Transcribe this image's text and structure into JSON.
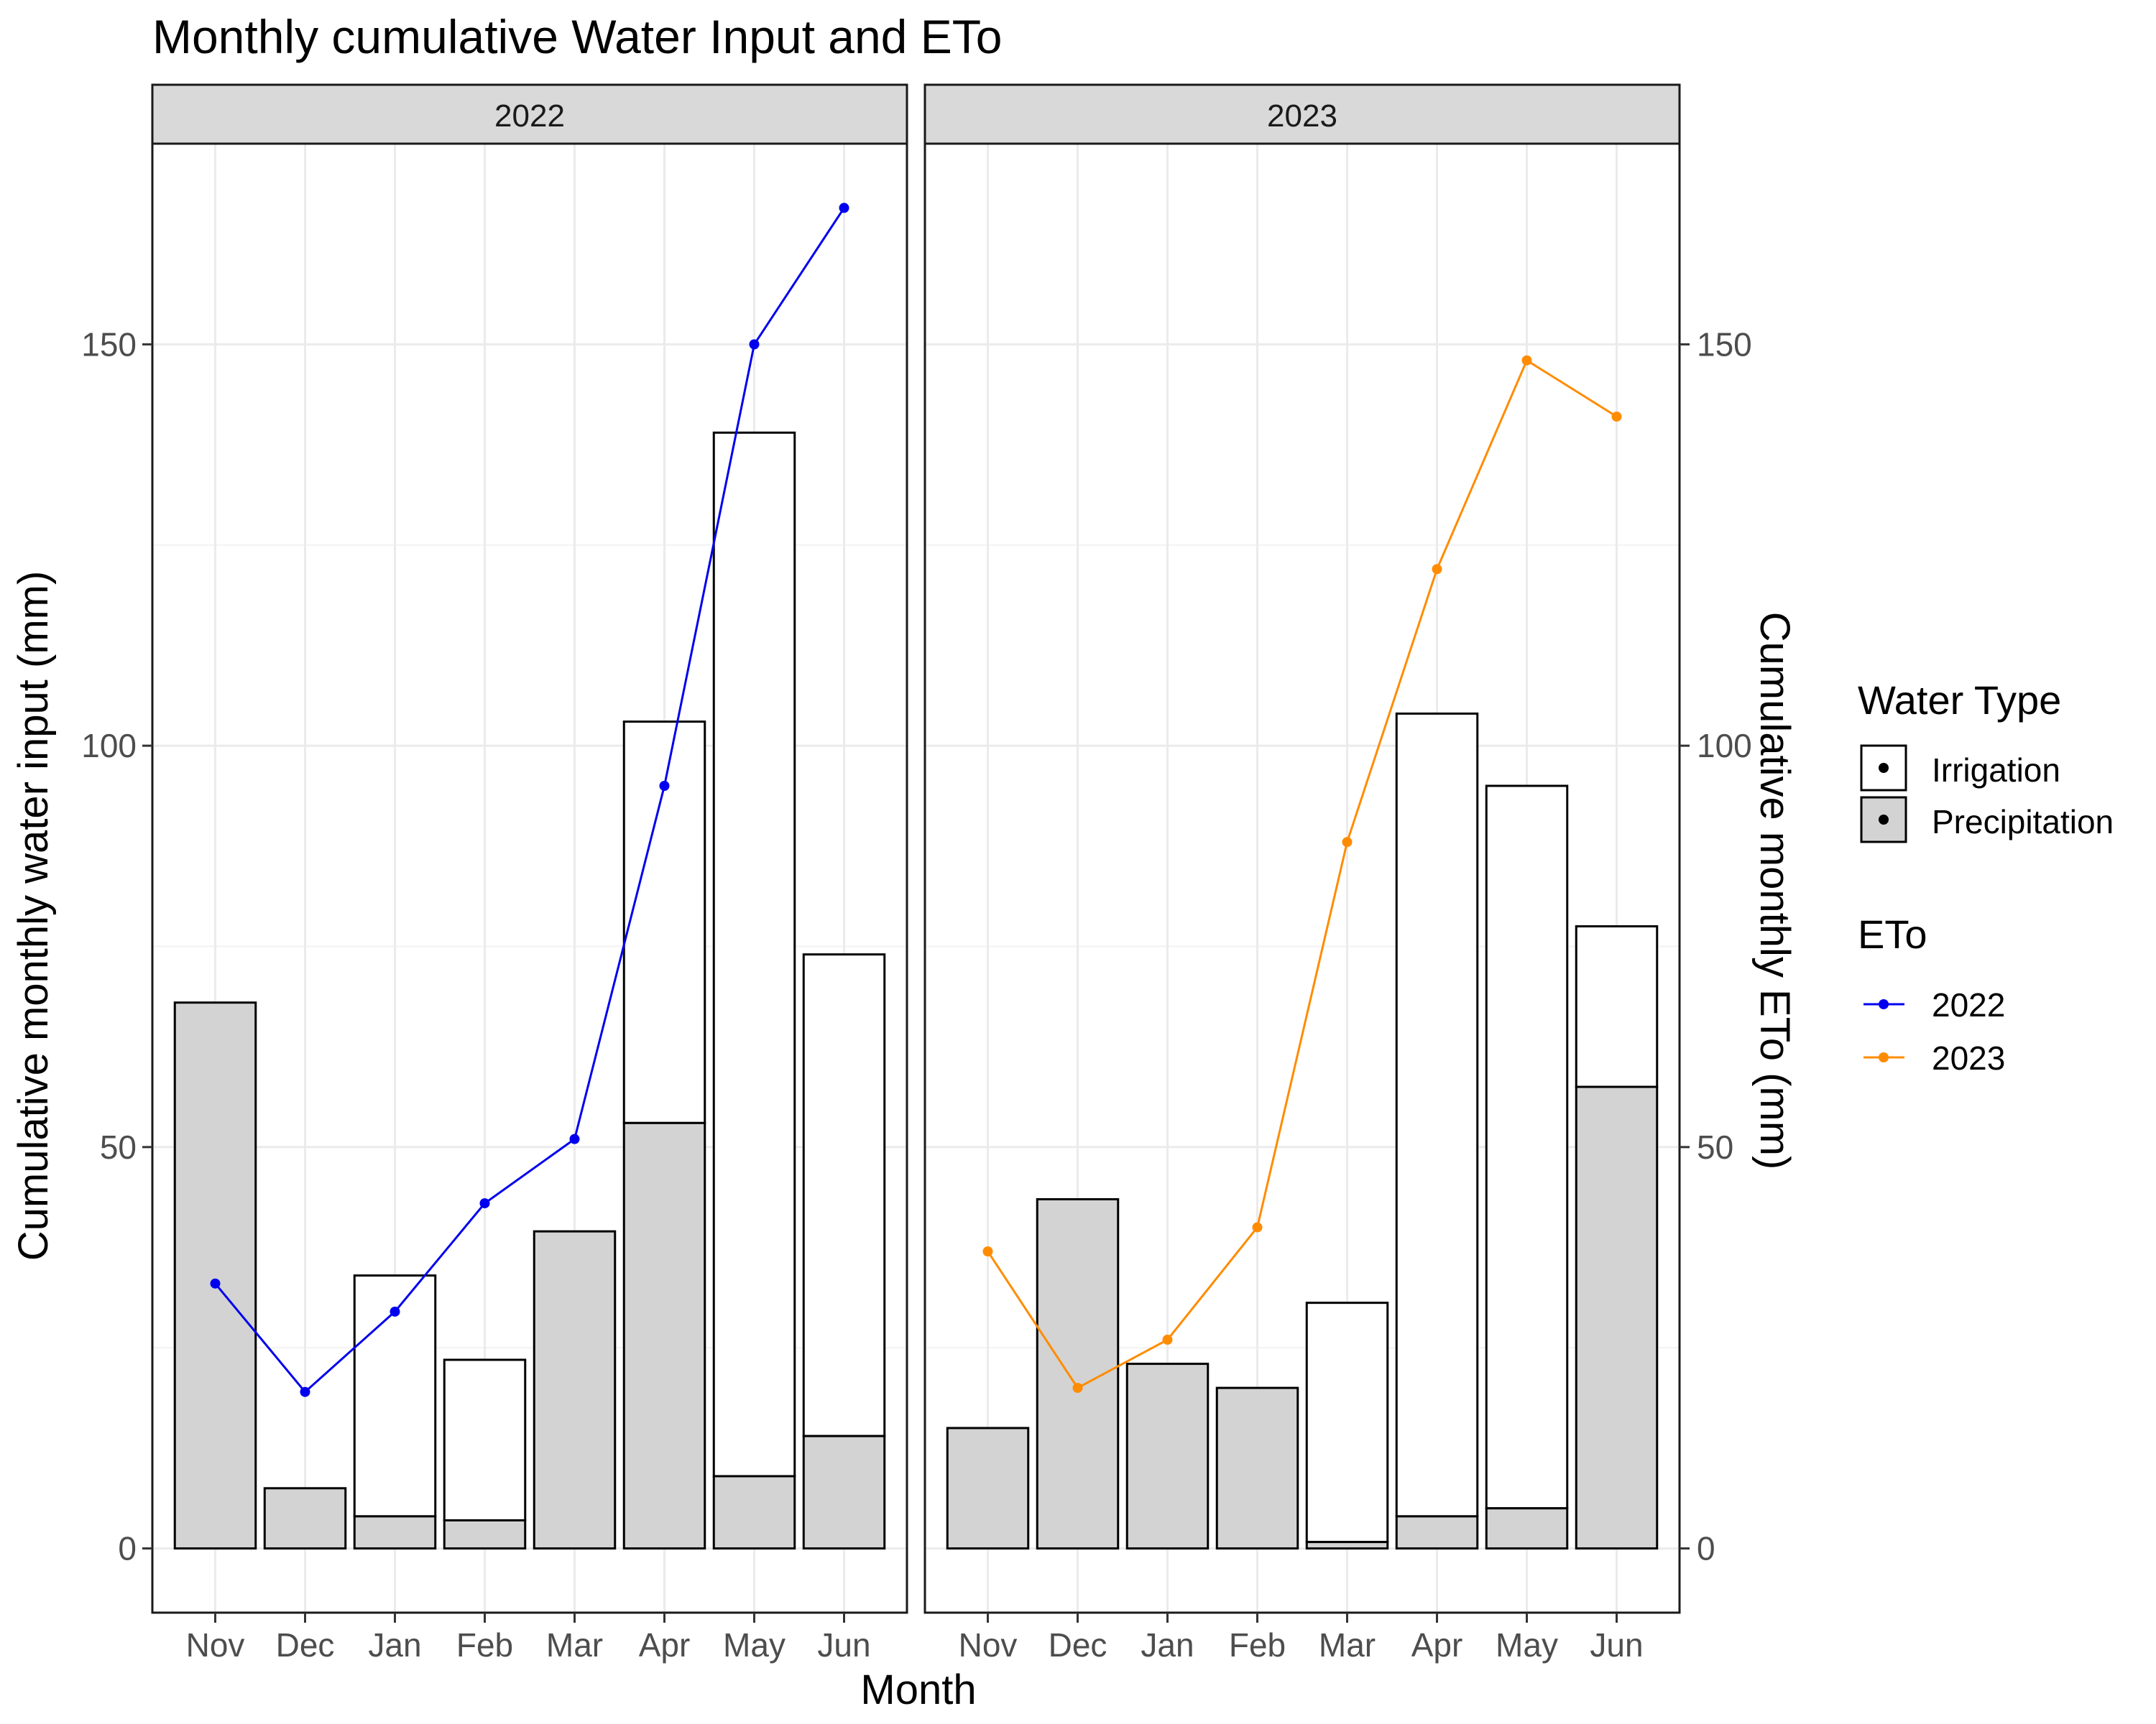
{
  "chart_data": {
    "type": "bar",
    "title": "Monthly cumulative Water Input and ETo",
    "xlabel": "Month",
    "ylabel": "Cumulative monthly water input (mm)",
    "y2label": "Cumulative monthly ETo (mm)",
    "ylim": [
      -8,
      175
    ],
    "yticks": [
      0,
      50,
      100,
      150
    ],
    "grid": true,
    "legend_placement": "right",
    "categories": [
      "Nov",
      "Dec",
      "Jan",
      "Feb",
      "Mar",
      "Apr",
      "May",
      "Jun"
    ],
    "legend": {
      "water_type": {
        "title": "Water Type",
        "items": [
          "Irrigation",
          "Precipitation"
        ]
      },
      "eto": {
        "title": "ETo",
        "items": [
          "2022",
          "2023"
        ]
      }
    },
    "colors": {
      "irrigation": "#ffffff",
      "precipitation": "#d3d3d3",
      "eto_2022": "#0000ee",
      "eto_2023": "#ff8c00"
    },
    "panels": [
      {
        "label": "2022",
        "precipitation": [
          68,
          7.5,
          4,
          3.5,
          39.5,
          53,
          9,
          14
        ],
        "irrigation": [
          0,
          0,
          30,
          20,
          0,
          50,
          130,
          60
        ],
        "eto": [
          33,
          19.5,
          29.5,
          43,
          51,
          95,
          150,
          167
        ]
      },
      {
        "label": "2023",
        "precipitation": [
          15,
          43.5,
          23,
          20,
          0.8,
          4,
          5,
          57.5
        ],
        "irrigation": [
          0,
          0,
          0,
          0,
          29.8,
          100,
          90,
          20
        ],
        "eto": [
          37,
          20,
          26,
          40,
          88,
          122,
          148,
          141
        ]
      }
    ]
  }
}
